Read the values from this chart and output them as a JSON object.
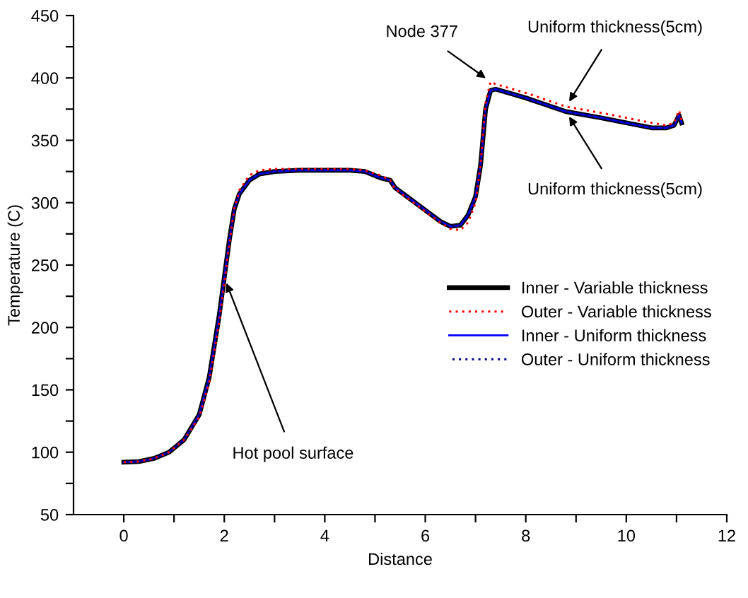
{
  "chart_data": {
    "type": "line",
    "xlabel": "Distance",
    "ylabel": "Temperature (C)",
    "xlim": [
      -1,
      12
    ],
    "ylim": [
      50,
      450
    ],
    "xticks": [
      0,
      {
        "value": 1,
        "label": null
      },
      2,
      {
        "value": 3,
        "label": null
      },
      4,
      {
        "value": 5,
        "label": null
      },
      6,
      {
        "value": 7,
        "label": null
      },
      8,
      {
        "value": 9,
        "label": null
      },
      10,
      {
        "value": 11,
        "label": null
      },
      12
    ],
    "yticks": [
      50,
      {
        "value": 75,
        "label": null
      },
      100,
      {
        "value": 125,
        "label": null
      },
      150,
      {
        "value": 175,
        "label": null
      },
      200,
      {
        "value": 225,
        "label": null
      },
      250,
      {
        "value": 275,
        "label": null
      },
      300,
      {
        "value": 325,
        "label": null
      },
      350,
      {
        "value": 375,
        "label": null
      },
      400,
      {
        "value": 425,
        "label": null
      },
      450
    ],
    "grid": false,
    "legend": "right",
    "marker": "none",
    "x": [
      0,
      0.3,
      0.6,
      0.9,
      1.2,
      1.5,
      1.7,
      1.9,
      2.0,
      2.1,
      2.2,
      2.3,
      2.5,
      2.7,
      3.0,
      3.5,
      4.0,
      4.5,
      4.8,
      5.1,
      5.3,
      5.4,
      5.7,
      6.0,
      6.3,
      6.5,
      6.7,
      6.85,
      7.0,
      7.1,
      7.2,
      7.3,
      7.4,
      8.0,
      8.8,
      9.5,
      10.0,
      10.5,
      10.8,
      10.95,
      11.05,
      11.1
    ],
    "series": [
      {
        "name": "Inner - Variable thickness",
        "color": "#000000",
        "line_style": "solid",
        "values": [
          92,
          92.5,
          95,
          100,
          110,
          130,
          160,
          210,
          240,
          270,
          295,
          307,
          318,
          323,
          325,
          326,
          326,
          326,
          325,
          320,
          318,
          312,
          303,
          294,
          285,
          281,
          282,
          290,
          305,
          330,
          375,
          390,
          391,
          384,
          373,
          368,
          364,
          360,
          360,
          362,
          370,
          364
        ]
      },
      {
        "name": "Outer - Variable thickness",
        "color": "#ff0000",
        "line_style": "dotted",
        "values": [
          92,
          92.5,
          95,
          100,
          110,
          128,
          156,
          205,
          235,
          267,
          295,
          310,
          322,
          326,
          327,
          327,
          327,
          327,
          326,
          322,
          318,
          311,
          302,
          293,
          284,
          279,
          278,
          284,
          300,
          330,
          380,
          397,
          395,
          388,
          377,
          372,
          368,
          364,
          362,
          364,
          374,
          366
        ]
      },
      {
        "name": "Inner - Uniform thickness",
        "color": "#0000ff",
        "line_style": "solid",
        "values": [
          92,
          92.5,
          95,
          100,
          110,
          130,
          160,
          210,
          240,
          270,
          295,
          307,
          318,
          323,
          325,
          326,
          326,
          326,
          325,
          320,
          318,
          312,
          303,
          294,
          285,
          281,
          282,
          290,
          305,
          330,
          375,
          390,
          391,
          384,
          373,
          368,
          364,
          360,
          360,
          362,
          370,
          364
        ]
      },
      {
        "name": "Outer - Uniform thickness",
        "color": "#000080",
        "line_style": "dotted",
        "values": [
          92,
          92.5,
          95,
          100,
          110,
          130,
          160,
          210,
          240,
          270,
          295,
          307,
          318,
          323,
          325,
          326,
          326,
          326,
          325,
          320,
          318,
          312,
          303,
          294,
          285,
          281,
          282,
          290,
          305,
          330,
          375,
          390,
          391,
          384,
          373,
          368,
          364,
          360,
          360,
          362,
          370,
          364
        ]
      }
    ],
    "annotations": [
      {
        "text": "Node 377",
        "x": 7.3,
        "y": 397
      },
      {
        "text": "Uniform thickness(5cm)",
        "x": 8.8,
        "y": 377
      },
      {
        "text": "Uniform thickness(5cm)",
        "x": 8.8,
        "y": 373
      },
      {
        "text": "Hot pool surface",
        "x": 2.0,
        "y": 240
      }
    ]
  }
}
